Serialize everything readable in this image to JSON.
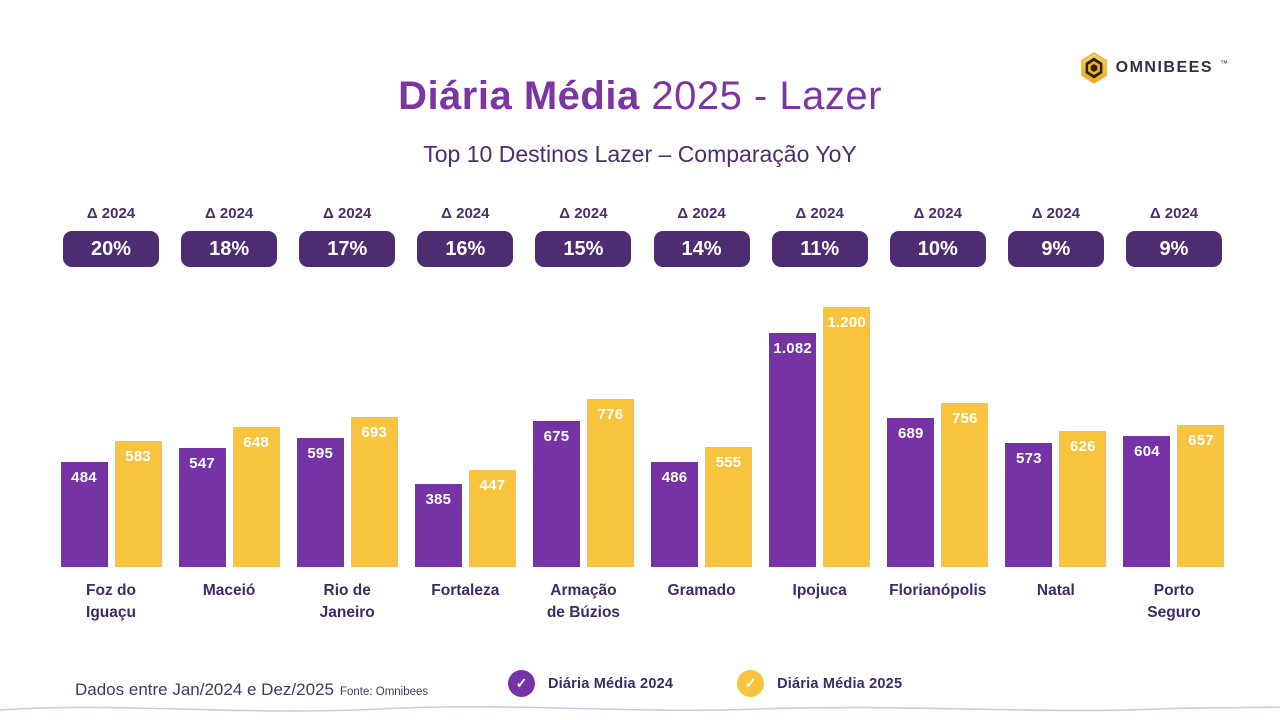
{
  "header": {
    "title_bold": "Diária Média",
    "title_rest": " 2025 - Lazer",
    "subtitle": "Top 10 Destinos Lazer – Comparação YoY",
    "logo_text": "OMNIBEES",
    "logo_tm": "™"
  },
  "colors": {
    "bar_2024_purple": "#7533a5",
    "bar_2025_yellow": "#f8c43d",
    "badge_background": "#4d2c71",
    "title_purple": "#7c35a3",
    "dark_purple_text": "#3f2a66",
    "logo_gold": "#f2b21d"
  },
  "chart_data": {
    "type": "bar",
    "title": "Diária Média 2025 - Lazer",
    "subtitle": "Top 10 Destinos Lazer – Comparação YoY",
    "delta_label": "Δ 2024",
    "ylim": [
      0,
      1200
    ],
    "grid": false,
    "legend_position": "bottom",
    "series_names": [
      "Diária Média 2024",
      "Diária Média 2025"
    ],
    "categories": [
      "Foz do Iguaçu",
      "Maceió",
      "Rio de Janeiro",
      "Fortaleza",
      "Armação de Búzios",
      "Gramado",
      "Ipojuca",
      "Florianópolis",
      "Natal",
      "Porto Seguro"
    ],
    "groups": [
      {
        "label": "Foz do\nIguaçu",
        "delta": "20%",
        "v2024": 484,
        "v2025": 583,
        "d2024": "484",
        "d2025": "583"
      },
      {
        "label": "Maceió",
        "delta": "18%",
        "v2024": 547,
        "v2025": 648,
        "d2024": "547",
        "d2025": "648"
      },
      {
        "label": "Rio de\nJaneiro",
        "delta": "17%",
        "v2024": 595,
        "v2025": 693,
        "d2024": "595",
        "d2025": "693"
      },
      {
        "label": "Fortaleza",
        "delta": "16%",
        "v2024": 385,
        "v2025": 447,
        "d2024": "385",
        "d2025": "447"
      },
      {
        "label": "Armação\nde Búzios",
        "delta": "15%",
        "v2024": 675,
        "v2025": 776,
        "d2024": "675",
        "d2025": "776"
      },
      {
        "label": "Gramado",
        "delta": "14%",
        "v2024": 486,
        "v2025": 555,
        "d2024": "486",
        "d2025": "555"
      },
      {
        "label": "Ipojuca",
        "delta": "11%",
        "v2024": 1082,
        "v2025": 1200,
        "d2024": "1.082",
        "d2025": "1.200"
      },
      {
        "label": "Florianópolis",
        "delta": "10%",
        "v2024": 689,
        "v2025": 756,
        "d2024": "689",
        "d2025": "756"
      },
      {
        "label": "Natal",
        "delta": "9%",
        "v2024": 573,
        "v2025": 626,
        "d2024": "573",
        "d2025": "626"
      },
      {
        "label": "Porto\nSeguro",
        "delta": "9%",
        "v2024": 604,
        "v2025": 657,
        "d2024": "604",
        "d2025": "657"
      }
    ]
  },
  "legend": {
    "check_glyph": "✓",
    "items": [
      {
        "label": "Diária Média 2024",
        "color": "#7533a5"
      },
      {
        "label": "Diária Média 2025",
        "color": "#f8c43d"
      }
    ]
  },
  "footer": {
    "text": "Dados entre Jan/2024 e Dez/2025",
    "source": "Fonte: Omnibees"
  }
}
